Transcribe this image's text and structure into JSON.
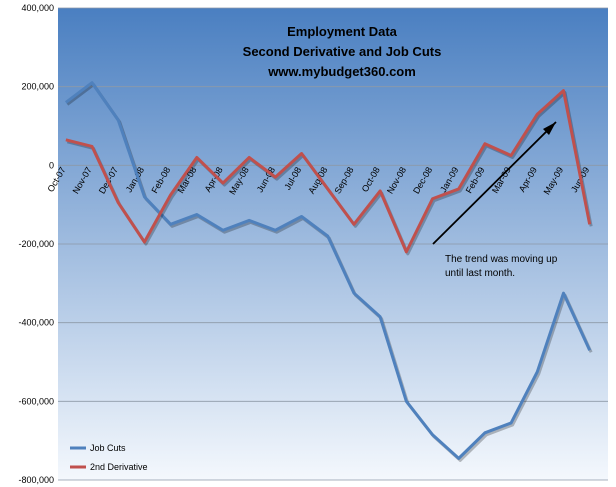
{
  "chart_data": {
    "type": "line",
    "title_lines": [
      "Employment Data",
      "Second Derivative and Job Cuts",
      "www.mybudget360.com"
    ],
    "categories": [
      "Oct-07",
      "Nov-07",
      "Dec-07",
      "Jan-08",
      "Feb-08",
      "Mar-08",
      "Apr-08",
      "May-08",
      "Jun-08",
      "Jul-08",
      "Aug-08",
      "Sep-08",
      "Oct-08",
      "Nov-08",
      "Dec-08",
      "Jan-09",
      "Feb-09",
      "Mar-09",
      "Apr-09",
      "May-09",
      "Jun-09"
    ],
    "series": [
      {
        "name": "Job Cuts",
        "color": "#4f81bd",
        "values": [
          160000,
          210000,
          115000,
          -80000,
          -150000,
          -125000,
          -165000,
          -140000,
          -165000,
          -130000,
          -180000,
          -325000,
          -385000,
          -600000,
          -685000,
          -745000,
          -680000,
          -655000,
          -525000,
          -325000,
          -470000
        ]
      },
      {
        "name": "2nd Derivative",
        "color": "#c0504d",
        "values": [
          65000,
          48000,
          -95000,
          -195000,
          -75000,
          20000,
          -45000,
          20000,
          -30000,
          30000,
          -60000,
          -150000,
          -65000,
          -220000,
          -85000,
          -60000,
          55000,
          25000,
          130000,
          190000,
          -150000
        ]
      }
    ],
    "ylim": [
      -800000,
      400000
    ],
    "yticks": [
      "400,000",
      "200,000",
      "0",
      "-200,000",
      "-400,000",
      "-600,000",
      "-800,000"
    ],
    "grid": true,
    "legend_position": "bottom-left",
    "annotation": {
      "lines": [
        "The trend was moving up",
        "until last month."
      ]
    },
    "colors": {
      "plot_top": "#4a7fc1",
      "plot_bottom": "#f4f8fd",
      "gridline": "#8d99a8",
      "arrow": "#000000"
    }
  }
}
